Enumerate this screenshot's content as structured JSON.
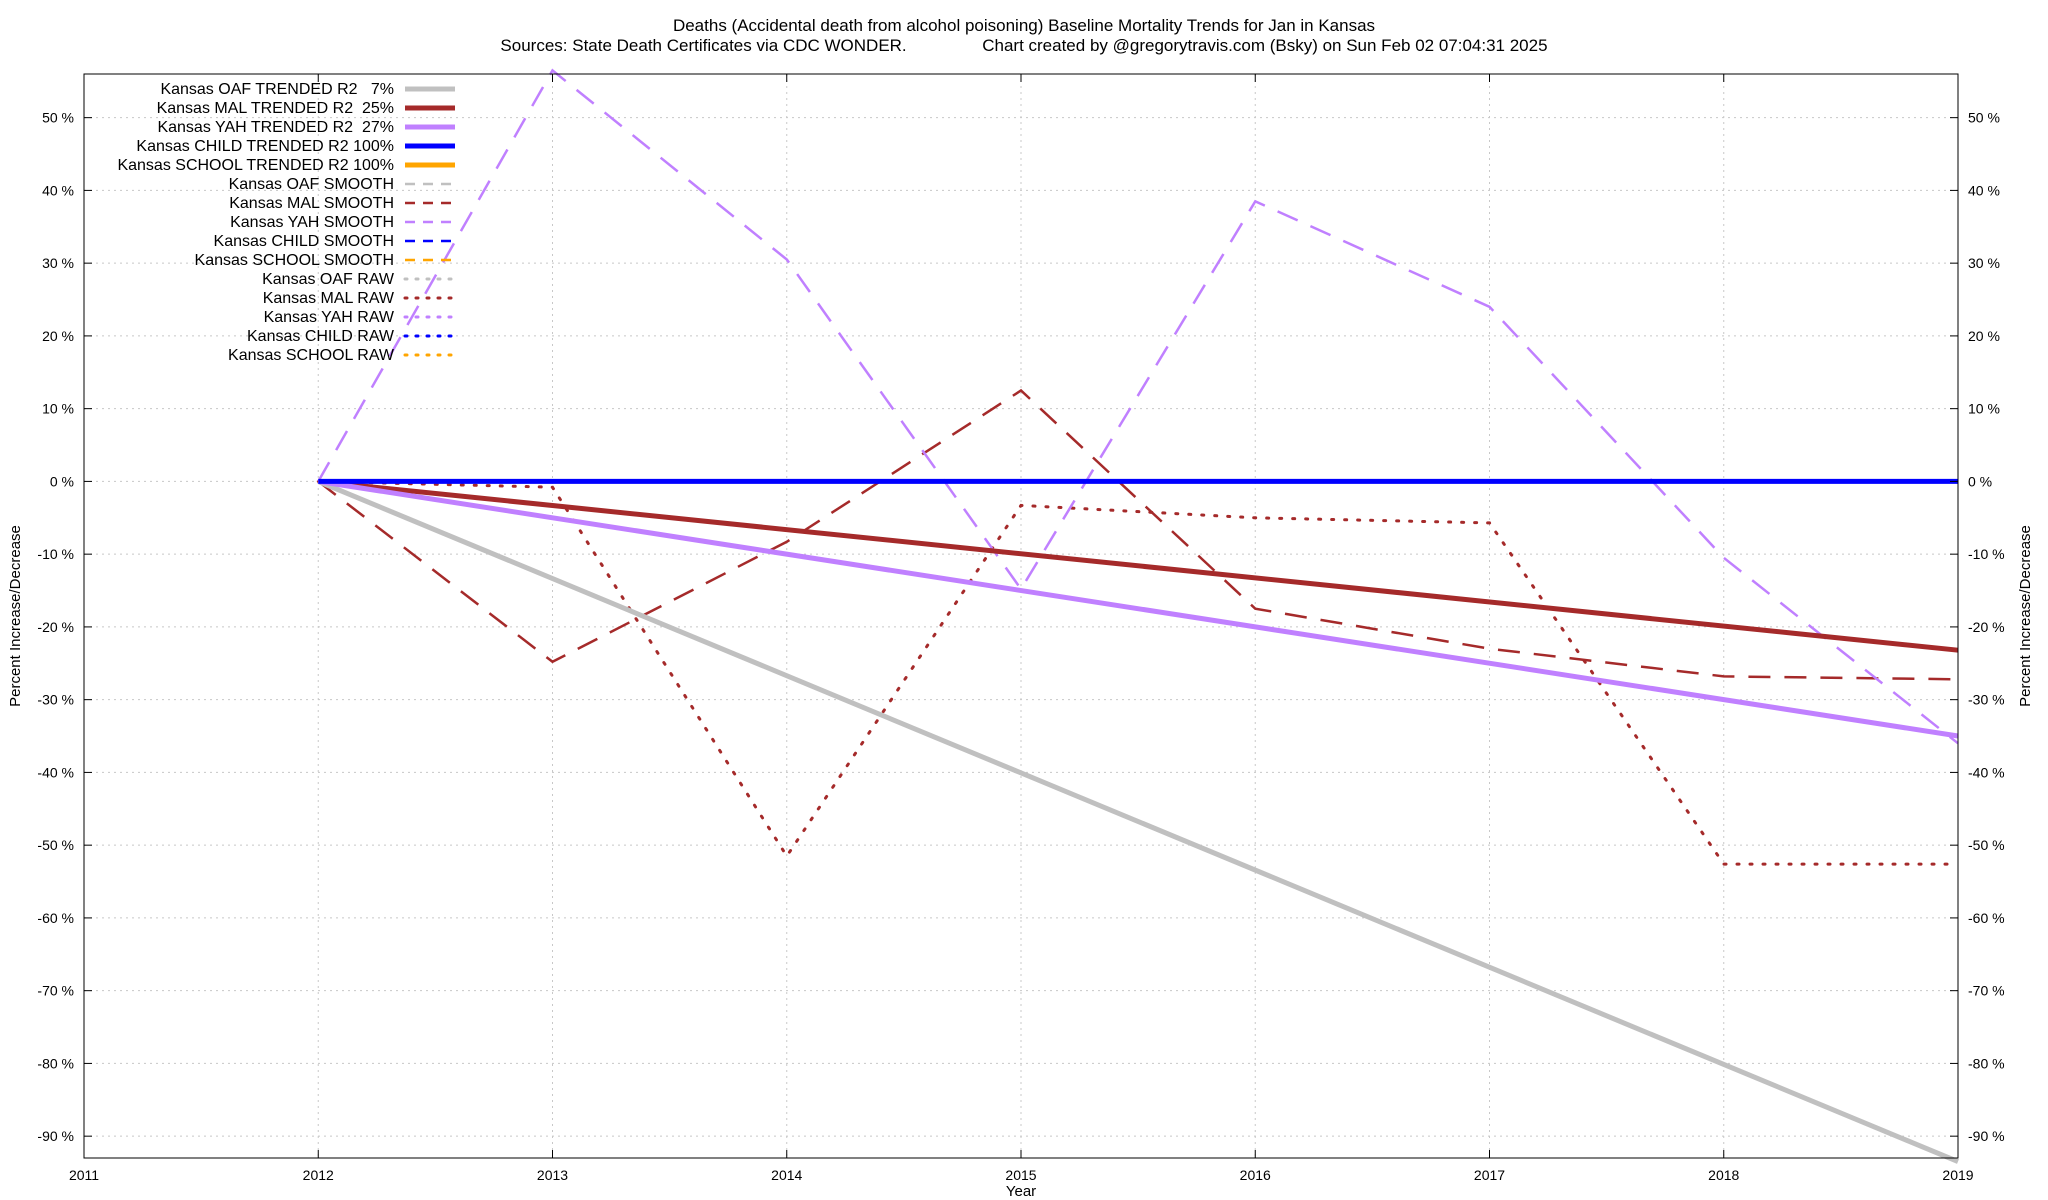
{
  "chart_data": {
    "type": "line",
    "title": "Deaths (Accidental death from alcohol poisoning)  Baseline Mortality Trends for Jan in Kansas",
    "subtitle": "Sources: State Death Certificates via CDC WONDER.                Chart created by @gregorytravis.com (Bsky) on Sun Feb 02 07:04:31 2025",
    "xlabel": "Year",
    "ylabel": "Percent Increase/Decrease",
    "ylabel_right": "Percent Increase/Decrease",
    "xlim": [
      2011,
      2019
    ],
    "ylim": [
      -93,
      56
    ],
    "x_ticks": [
      "2011",
      "2012",
      "2013",
      "2014",
      "2015",
      "2016",
      "2017",
      "2018",
      "2019"
    ],
    "y_ticks": [
      50,
      40,
      30,
      20,
      10,
      0,
      -10,
      -20,
      -30,
      -40,
      -50,
      -60,
      -70,
      -80,
      -90
    ],
    "y_tick_labels": [
      "50 %",
      "40 %",
      "30 %",
      "20 %",
      "10 %",
      "0 %",
      "-10 %",
      "-20 %",
      "-30 %",
      "-40 %",
      "-50 %",
      "-60 %",
      "-70 %",
      "-80 %",
      "-90 %"
    ],
    "grid": true,
    "legend_position": "top-left",
    "series": [
      {
        "name": "Kansas OAF TRENDED R2   7%",
        "color": "#c0c0c0",
        "style": "solid-thick",
        "x": [
          2012,
          2019
        ],
        "y": [
          0,
          -93.5
        ]
      },
      {
        "name": "Kansas MAL TRENDED R2  25%",
        "color": "#a52a2a",
        "style": "solid-thick",
        "x": [
          2012,
          2019
        ],
        "y": [
          0,
          -23.2
        ]
      },
      {
        "name": "Kansas YAH TRENDED R2  27%",
        "color": "#c080ff",
        "style": "solid-thick",
        "x": [
          2012,
          2019
        ],
        "y": [
          0,
          -35
        ]
      },
      {
        "name": "Kansas CHILD TRENDED R2 100%",
        "color": "#0000ff",
        "style": "solid-thick",
        "x": [
          2012,
          2019
        ],
        "y": [
          0,
          0
        ]
      },
      {
        "name": "Kansas SCHOOL TRENDED R2 100%",
        "color": "#ffa500",
        "style": "solid-thick",
        "x": [],
        "y": []
      },
      {
        "name": "Kansas OAF SMOOTH",
        "color": "#c0c0c0",
        "style": "dashed",
        "x": [],
        "y": []
      },
      {
        "name": "Kansas MAL SMOOTH",
        "color": "#a52a2a",
        "style": "dashed",
        "x": [
          2012,
          2013,
          2014,
          2015,
          2016,
          2017,
          2018,
          2019
        ],
        "y": [
          0,
          -24.8,
          -8.3,
          12.5,
          -17.5,
          -23,
          -26.8,
          -27.2
        ]
      },
      {
        "name": "Kansas YAH SMOOTH",
        "color": "#c080ff",
        "style": "dashed",
        "x": [
          2012,
          2013,
          2014,
          2015,
          2016,
          2017,
          2018,
          2019
        ],
        "y": [
          0,
          56.5,
          30.5,
          -14.8,
          38.5,
          24,
          -10.5,
          -36
        ]
      },
      {
        "name": "Kansas CHILD SMOOTH",
        "color": "#0000ff",
        "style": "dashed",
        "x": [],
        "y": []
      },
      {
        "name": "Kansas SCHOOL SMOOTH",
        "color": "#ffa500",
        "style": "dashed",
        "x": [],
        "y": []
      },
      {
        "name": "Kansas OAF RAW",
        "color": "#c0c0c0",
        "style": "dotted",
        "x": [],
        "y": []
      },
      {
        "name": "Kansas MAL RAW",
        "color": "#a52a2a",
        "style": "dotted",
        "x": [
          2012,
          2013,
          2014,
          2015,
          2016,
          2017,
          2018,
          2019
        ],
        "y": [
          0,
          -0.8,
          -51.5,
          -3.3,
          -5,
          -5.7,
          -52.6,
          -52.6
        ]
      },
      {
        "name": "Kansas YAH RAW",
        "color": "#c080ff",
        "style": "dotted",
        "x": [],
        "y": []
      },
      {
        "name": "Kansas CHILD RAW",
        "color": "#0000ff",
        "style": "dotted",
        "x": [],
        "y": []
      },
      {
        "name": "Kansas SCHOOL RAW",
        "color": "#ffa500",
        "style": "dotted",
        "x": [],
        "y": []
      }
    ]
  }
}
